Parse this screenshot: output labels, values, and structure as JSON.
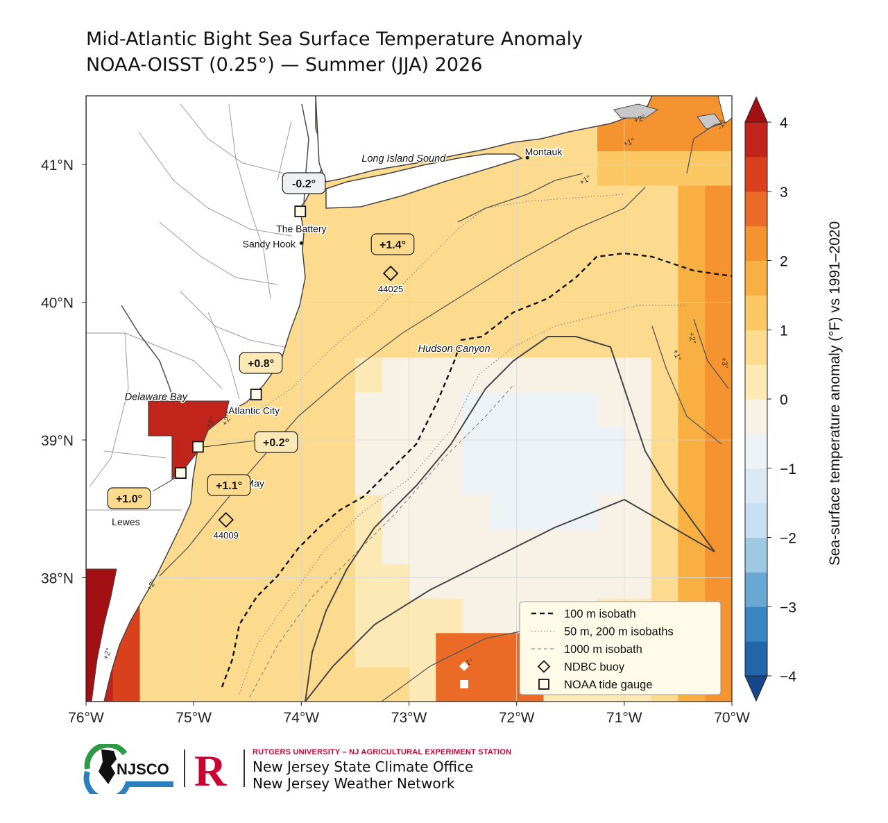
{
  "title": {
    "line1": "Mid-Atlantic Bight Sea Surface Temperature Anomaly",
    "line2": "NOAA-OISST (0.25°) — Summer (JJA) 2026"
  },
  "map": {
    "extent": {
      "lon": [
        -76,
        -70
      ],
      "lat": [
        37.1,
        41.5
      ]
    },
    "lon_ticks": [
      {
        "value": -76,
        "label": "76°W"
      },
      {
        "value": -75,
        "label": "75°W"
      },
      {
        "value": -74,
        "label": "74°W"
      },
      {
        "value": -73,
        "label": "73°W"
      },
      {
        "value": -72,
        "label": "72°W"
      },
      {
        "value": -71,
        "label": "71°W"
      },
      {
        "value": -70,
        "label": "70°W"
      }
    ],
    "lat_ticks": [
      {
        "value": 41,
        "label": "41°N"
      },
      {
        "value": 40,
        "label": "40°N"
      },
      {
        "value": 39,
        "label": "39°N"
      },
      {
        "value": 38,
        "label": "38°N"
      }
    ],
    "colors": {
      "land": "#ffffff",
      "coast": "#444444",
      "county": "#9a9a9a",
      "ocean_neutral": "#eef1f4"
    },
    "places": [
      {
        "name": "Long Island Sound",
        "style": "italic",
        "lon": -73.05,
        "lat": 41.02
      },
      {
        "name": "Montauk",
        "style": "normal",
        "lon": -71.75,
        "lat": 41.07
      },
      {
        "name": "The Battery",
        "style": "normal",
        "lon": -74.0,
        "lat": 40.51
      },
      {
        "name": "Sandy Hook",
        "style": "normal",
        "lon": -74.3,
        "lat": 40.4
      },
      {
        "name": "Delaware Bay",
        "style": "italic",
        "lon": -75.35,
        "lat": 39.29
      },
      {
        "name": "Atlantic City",
        "style": "normal",
        "lon": -74.44,
        "lat": 39.19
      },
      {
        "name": "Cape May",
        "style": "normal",
        "lon": -74.55,
        "lat": 38.66
      },
      {
        "name": "Lewes",
        "style": "normal",
        "lon": -75.63,
        "lat": 38.38
      },
      {
        "name": "Hudson Canyon",
        "style": "italic",
        "lon": -72.58,
        "lat": 39.64
      }
    ],
    "buoys": [
      {
        "id": "44025",
        "lon": -73.17,
        "lat": 40.21,
        "anomaly": "+1.4°"
      },
      {
        "id": "44009",
        "lon": -74.7,
        "lat": 38.42,
        "anomaly": "+1.1°"
      }
    ],
    "tide_gauges": [
      {
        "name": "The Battery",
        "lon": -74.01,
        "lat": 40.66,
        "anomaly": "-0.2°"
      },
      {
        "name": "Atlantic City",
        "lon": -74.42,
        "lat": 39.33,
        "anomaly": "+0.8°"
      },
      {
        "name": "Cape May",
        "lon": -74.96,
        "lat": 38.95,
        "anomaly": "+0.2°"
      },
      {
        "name": "Lewes",
        "lon": -75.12,
        "lat": 38.76,
        "anomaly": "+1.0°"
      }
    ],
    "contour_labels": [
      "+1°",
      "+2°",
      "+3°",
      "-1°"
    ]
  },
  "colorbar": {
    "label": "Sea-surface temperature anomaly (°F) vs 1991–2020",
    "range": [
      -4,
      4
    ],
    "ticks": [
      {
        "value": 4,
        "label": "4"
      },
      {
        "value": 3,
        "label": "3"
      },
      {
        "value": 2,
        "label": "2"
      },
      {
        "value": 1,
        "label": "1"
      },
      {
        "value": 0,
        "label": "0"
      },
      {
        "value": -1,
        "label": "−1"
      },
      {
        "value": -2,
        "label": "−2"
      },
      {
        "value": -3,
        "label": "−3"
      },
      {
        "value": -4,
        "label": "−4"
      }
    ],
    "colors": [
      "#16468c",
      "#2266a8",
      "#3a86c2",
      "#6aa8d4",
      "#9fc8e3",
      "#c7dff0",
      "#dbe9f4",
      "#edf2f6",
      "#f7f1e6",
      "#fde9b6",
      "#fddb8e",
      "#fcc863",
      "#f9b042",
      "#f59331",
      "#ea6a26",
      "#d9411d",
      "#c0241a",
      "#a31014"
    ]
  },
  "legend": {
    "items": [
      {
        "label": "100 m isobath",
        "type": "dash"
      },
      {
        "label": "50 m, 200 m isobaths",
        "type": "dot"
      },
      {
        "label": "1000 m isobath",
        "type": "thin-dash"
      },
      {
        "label": "NDBC buoy",
        "type": "diamond"
      },
      {
        "label": "NOAA tide gauge",
        "type": "square"
      }
    ]
  },
  "footer": {
    "logo_text": "NJSCO",
    "university": "RUTGERS UNIVERSITY – NJ AGRICULTURAL EXPERIMENT STATION",
    "office": "New Jersey State Climate Office",
    "network": "New Jersey Weather Network",
    "colors": {
      "rutgers_red": "#cc0033",
      "njsco_green": "#2e9a47",
      "njsco_blue": "#2a7fbf"
    }
  }
}
